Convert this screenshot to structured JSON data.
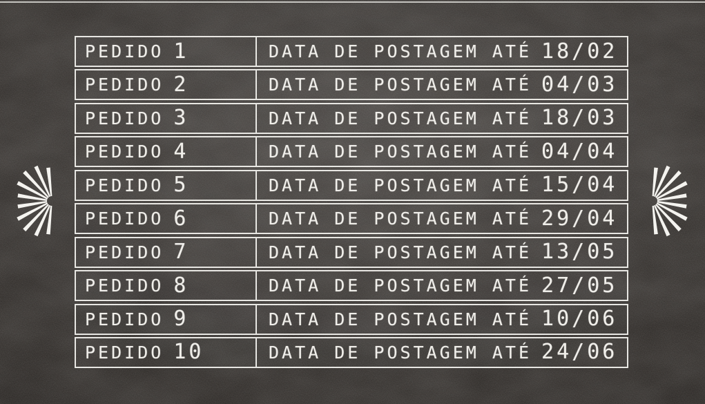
{
  "table": {
    "rows": [
      {
        "order_label": "PEDIDO",
        "order_number": "1",
        "posting_label": "DATA DE POSTAGEM ATÉ",
        "posting_date": "18/02"
      },
      {
        "order_label": "PEDIDO",
        "order_number": "2",
        "posting_label": "DATA DE POSTAGEM ATÉ",
        "posting_date": "04/03"
      },
      {
        "order_label": "PEDIDO",
        "order_number": "3",
        "posting_label": "DATA DE POSTAGEM ATÉ",
        "posting_date": "18/03"
      },
      {
        "order_label": "PEDIDO",
        "order_number": "4",
        "posting_label": "DATA DE POSTAGEM ATÉ",
        "posting_date": "04/04"
      },
      {
        "order_label": "PEDIDO",
        "order_number": "5",
        "posting_label": "DATA DE POSTAGEM ATÉ",
        "posting_date": "15/04"
      },
      {
        "order_label": "PEDIDO",
        "order_number": "6",
        "posting_label": "DATA DE POSTAGEM ATÉ",
        "posting_date": "29/04"
      },
      {
        "order_label": "PEDIDO",
        "order_number": "7",
        "posting_label": "DATA DE POSTAGEM ATÉ",
        "posting_date": "13/05"
      },
      {
        "order_label": "PEDIDO",
        "order_number": "8",
        "posting_label": "DATA DE POSTAGEM ATÉ",
        "posting_date": "27/05"
      },
      {
        "order_label": "PEDIDO",
        "order_number": "9",
        "posting_label": "DATA DE POSTAGEM ATÉ",
        "posting_date": "10/06"
      },
      {
        "order_label": "PEDIDO",
        "order_number": "10",
        "posting_label": "DATA DE POSTAGEM ATÉ",
        "posting_date": "24/06"
      }
    ]
  },
  "decorations": {
    "left_icon": "starburst-rays-left",
    "right_icon": "starburst-rays-right"
  },
  "colors": {
    "chalk_white": "#efede8",
    "board_dark": "#282522",
    "line_white": "#f0efeb"
  }
}
